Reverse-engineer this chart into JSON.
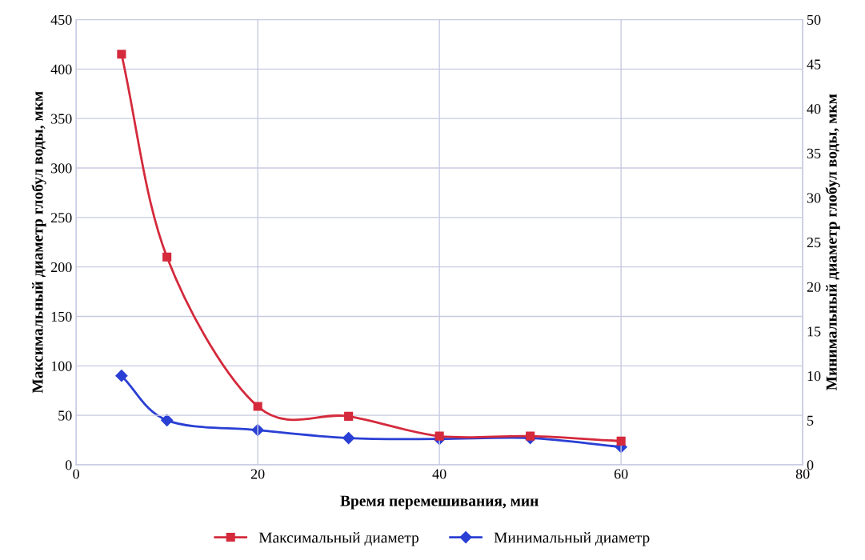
{
  "chart_data": {
    "type": "line",
    "xlabel": "Время перемешивания, мин",
    "ylabel": "Максимальный диаметр глобул воды, мкм",
    "y2label": "Минимальный диаметр глобул воды, мкм",
    "x": [
      5,
      10,
      20,
      30,
      40,
      50,
      60
    ],
    "series": [
      {
        "name": "Максимальный диаметр",
        "color": "#d42a3c",
        "marker": "square",
        "values": [
          415,
          210,
          59,
          49,
          29,
          29,
          24
        ]
      },
      {
        "name": "Минимальный диаметр",
        "color": "#2a3fd4",
        "marker": "diamond",
        "axis": "y2",
        "values": [
          10,
          5,
          3.9,
          3.0,
          2.9,
          3.0,
          2.0
        ]
      }
    ],
    "xlim": [
      0,
      80
    ],
    "xticks": [
      0,
      20,
      40,
      60,
      80
    ],
    "ylim": [
      0,
      450
    ],
    "yticks": [
      0,
      50,
      100,
      150,
      200,
      250,
      300,
      350,
      400,
      450
    ],
    "y2lim": [
      0,
      50
    ],
    "y2ticks": [
      0,
      5,
      10,
      15,
      20,
      25,
      30,
      35,
      40,
      45,
      50
    ],
    "grid": true,
    "legend": "bottom",
    "line_style": "solid"
  }
}
